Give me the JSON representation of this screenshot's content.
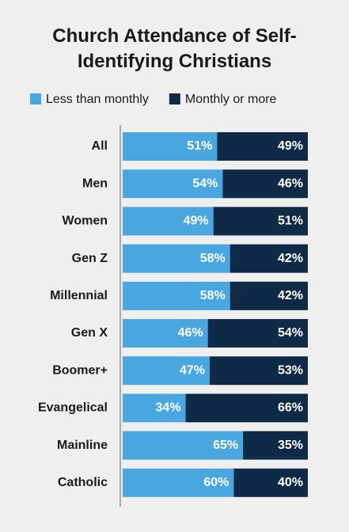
{
  "chart_data": {
    "type": "stacked-bar",
    "orientation": "horizontal",
    "title": "Church Attendance of Self-Identifying Christians",
    "categories": [
      "All",
      "Men",
      "Women",
      "Gen Z",
      "Millennial",
      "Gen X",
      "Boomer+",
      "Evangelical",
      "Mainline",
      "Catholic"
    ],
    "series": [
      {
        "name": "Less than monthly",
        "color": "#4aa6de",
        "values": [
          51,
          54,
          49,
          58,
          58,
          46,
          47,
          34,
          65,
          60
        ],
        "value_labels": [
          "51%",
          "54%",
          "49%",
          "58%",
          "58%",
          "46%",
          "47%",
          "34%",
          "65%",
          "60%"
        ]
      },
      {
        "name": "Monthly or more",
        "color": "#0f2a47",
        "values": [
          49,
          46,
          51,
          42,
          42,
          54,
          53,
          66,
          35,
          40
        ],
        "value_labels": [
          "49%",
          "46%",
          "51%",
          "42%",
          "42%",
          "54%",
          "53%",
          "66%",
          "35%",
          "40%"
        ]
      }
    ],
    "xlim": [
      0,
      100
    ]
  }
}
